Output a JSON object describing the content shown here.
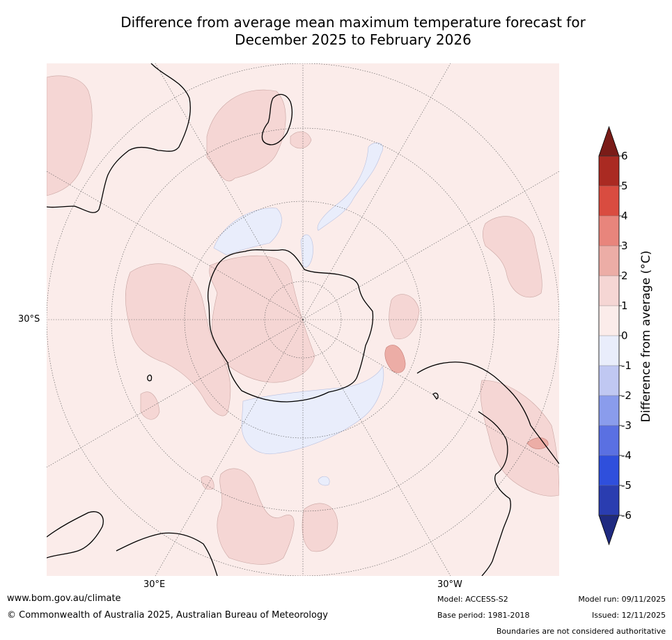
{
  "title": {
    "line1": "Difference from average mean maximum temperature forecast for",
    "line2": "December 2025 to February 2026"
  },
  "map_labels": {
    "lat_30s": "30°S",
    "lon_30e": "30°E",
    "lon_30w": "30°W"
  },
  "colorbar": {
    "title": "Difference from average (°C)",
    "ticks": [
      "6",
      "5",
      "4",
      "3",
      "2",
      "1",
      "0",
      "-1",
      "-2",
      "-3",
      "-4",
      "-5",
      "-6"
    ],
    "colors": [
      "#7a1c18",
      "#aa2a22",
      "#d94c40",
      "#e8857c",
      "#ecada6",
      "#f5d6d4",
      "#fbecea",
      "#e9edfb",
      "#c0c8f2",
      "#8a9cec",
      "#5a70e2",
      "#2f4fdc",
      "#2a3db0",
      "#1f2a80"
    ]
  },
  "footer": {
    "website": "www.bom.gov.au/climate",
    "copyright": "© Commonwealth of Australia 2025, Australian Bureau of Meteorology",
    "model": "Model: ACCESS-S2",
    "base_period": "Base period: 1981-2018",
    "model_run": "Model run: 09/11/2025",
    "issued": "Issued: 12/11/2025",
    "disclaimer": "Boundaries are not considered authoritative"
  }
}
